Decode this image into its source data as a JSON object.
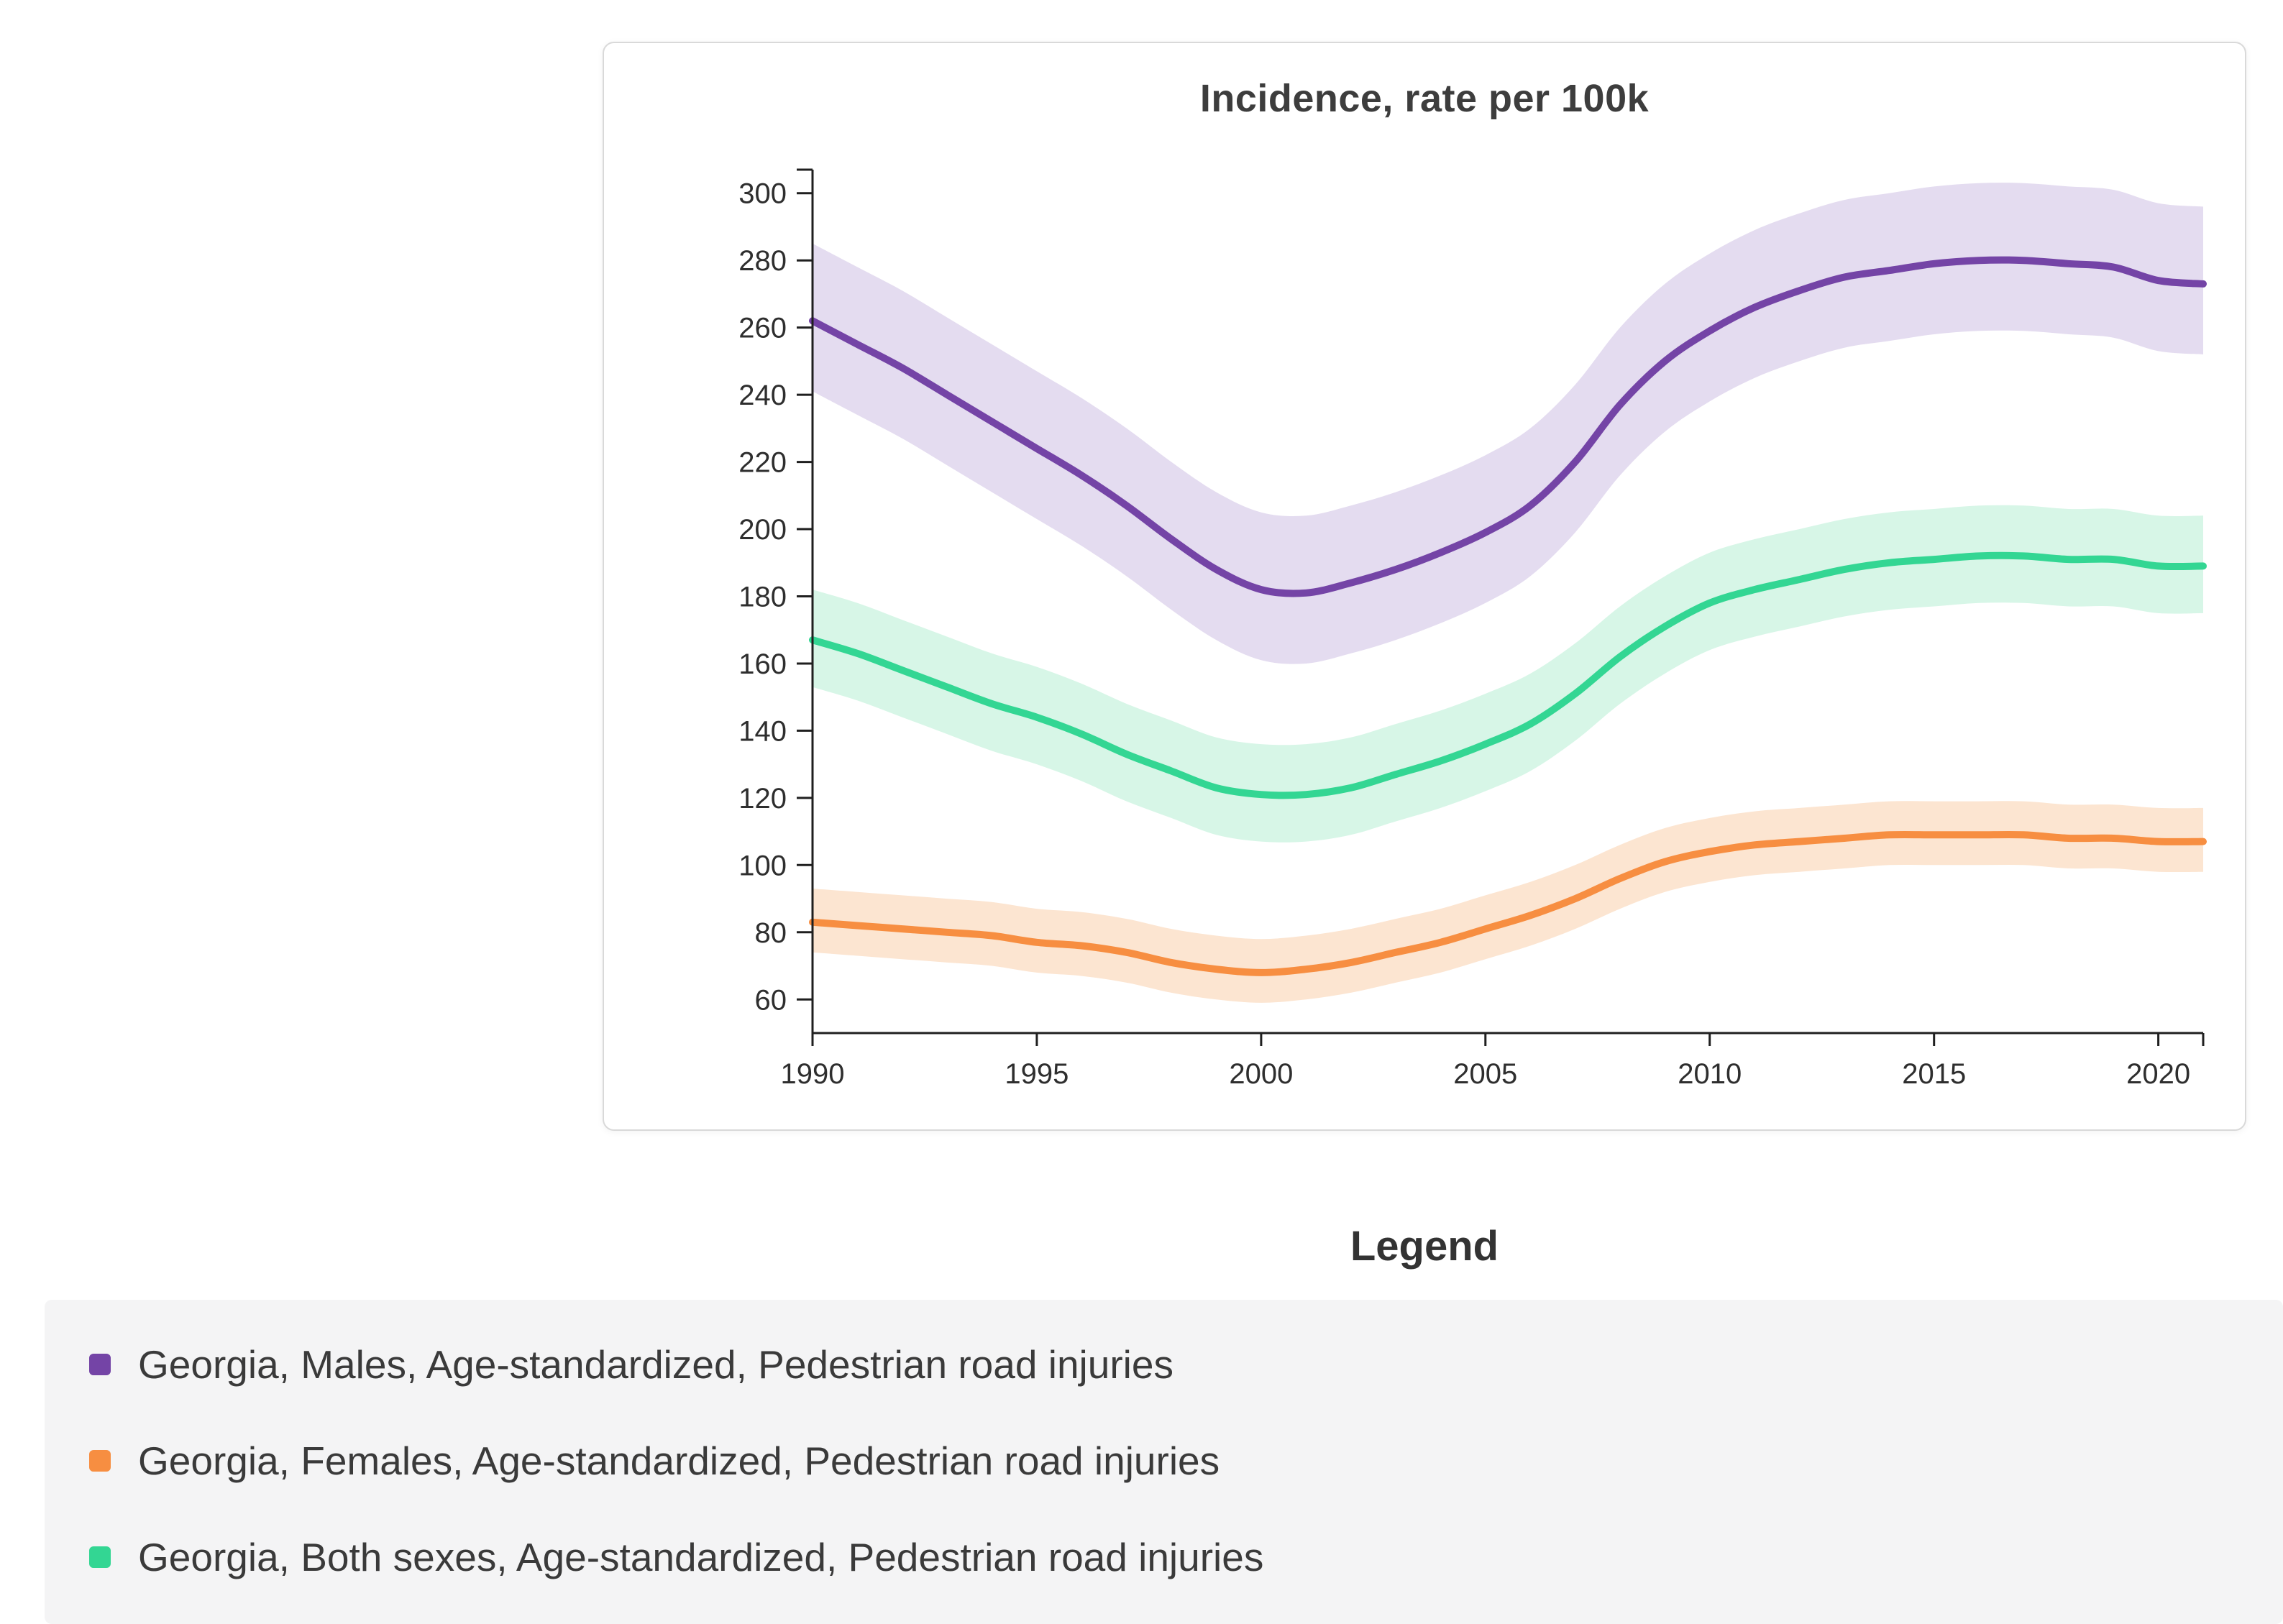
{
  "chart": {
    "title": "Incidence, rate per 100k"
  },
  "legend": {
    "title": "Legend",
    "items": [
      {
        "label": "Georgia, Males, Age-standardized, Pedestrian road injuries",
        "color": "#7444a6"
      },
      {
        "label": "Georgia, Females, Age-standardized, Pedestrian road injuries",
        "color": "#f78e41"
      },
      {
        "label": "Georgia, Both sexes, Age-standardized, Pedestrian road injuries",
        "color": "#33d693"
      }
    ]
  },
  "chart_data": {
    "type": "line",
    "title": "Incidence, rate per 100k",
    "xlabel": "",
    "ylabel": "",
    "xlim": [
      1990,
      2021
    ],
    "ylim": [
      50,
      307
    ],
    "xticks": [
      1990,
      1995,
      2000,
      2005,
      2010,
      2015,
      2020
    ],
    "yticks": [
      60,
      80,
      100,
      120,
      140,
      160,
      180,
      200,
      220,
      240,
      260,
      280,
      300
    ],
    "grid": false,
    "legend_position": "bottom",
    "x": [
      1990,
      1991,
      1992,
      1993,
      1994,
      1995,
      1996,
      1997,
      1998,
      1999,
      2000,
      2001,
      2002,
      2003,
      2004,
      2005,
      2006,
      2007,
      2008,
      2009,
      2010,
      2011,
      2012,
      2013,
      2014,
      2015,
      2016,
      2017,
      2018,
      2019,
      2020,
      2021
    ],
    "series": [
      {
        "id": "males",
        "name": "Georgia, Males, Age-standardized, Pedestrian road injuries",
        "color": "#7444a6",
        "band_color": "#e4dcf0",
        "values": [
          262,
          255,
          248,
          240,
          232,
          224,
          216,
          207,
          197,
          188,
          182,
          181,
          184,
          188,
          193,
          199,
          207,
          220,
          237,
          250,
          259,
          266,
          271,
          275,
          277,
          279,
          280,
          280,
          279,
          278,
          274,
          273
        ],
        "upper": [
          285,
          278,
          271,
          263,
          255,
          247,
          239,
          230,
          220,
          211,
          205,
          204,
          207,
          211,
          216,
          222,
          230,
          243,
          260,
          273,
          282,
          289,
          294,
          298,
          300,
          302,
          303,
          303,
          302,
          301,
          297,
          296
        ],
        "lower": [
          241,
          234,
          227,
          219,
          211,
          203,
          195,
          186,
          176,
          167,
          161,
          160,
          163,
          167,
          172,
          178,
          186,
          199,
          216,
          229,
          238,
          245,
          250,
          254,
          256,
          258,
          259,
          259,
          258,
          257,
          253,
          252
        ]
      },
      {
        "id": "both-sexes",
        "name": "Georgia, Both sexes, Age-standardized, Pedestrian road injuries",
        "color": "#33d693",
        "band_color": "#d7f6e7",
        "values": [
          167,
          163,
          158,
          153,
          148,
          144,
          139,
          133,
          128,
          123,
          121,
          121,
          123,
          127,
          131,
          136,
          142,
          151,
          162,
          171,
          178,
          182,
          185,
          188,
          190,
          191,
          192,
          192,
          191,
          191,
          189,
          189
        ],
        "upper": [
          182,
          178,
          173,
          168,
          163,
          159,
          154,
          148,
          143,
          138,
          136,
          136,
          138,
          142,
          146,
          151,
          157,
          166,
          177,
          186,
          193,
          197,
          200,
          203,
          205,
          206,
          207,
          207,
          206,
          206,
          204,
          204
        ],
        "lower": [
          153,
          149,
          144,
          139,
          134,
          130,
          125,
          119,
          114,
          109,
          107,
          107,
          109,
          113,
          117,
          122,
          128,
          137,
          148,
          157,
          164,
          168,
          171,
          174,
          176,
          177,
          178,
          178,
          177,
          177,
          175,
          175
        ]
      },
      {
        "id": "females",
        "name": "Georgia, Females, Age-standardized, Pedestrian road injuries",
        "color": "#f78e41",
        "band_color": "#fce5d1",
        "values": [
          83,
          82,
          81,
          80,
          79,
          77,
          76,
          74,
          71,
          69,
          68,
          69,
          71,
          74,
          77,
          81,
          85,
          90,
          96,
          101,
          104,
          106,
          107,
          108,
          109,
          109,
          109,
          109,
          108,
          108,
          107,
          107
        ],
        "upper": [
          93,
          92,
          91,
          90,
          89,
          87,
          86,
          84,
          81,
          79,
          78,
          79,
          81,
          84,
          87,
          91,
          95,
          100,
          106,
          111,
          114,
          116,
          117,
          118,
          119,
          119,
          119,
          119,
          118,
          118,
          117,
          117
        ],
        "lower": [
          74,
          73,
          72,
          71,
          70,
          68,
          67,
          65,
          62,
          60,
          59,
          60,
          62,
          65,
          68,
          72,
          76,
          81,
          87,
          92,
          95,
          97,
          98,
          99,
          100,
          100,
          100,
          100,
          99,
          99,
          98,
          98
        ]
      }
    ]
  }
}
